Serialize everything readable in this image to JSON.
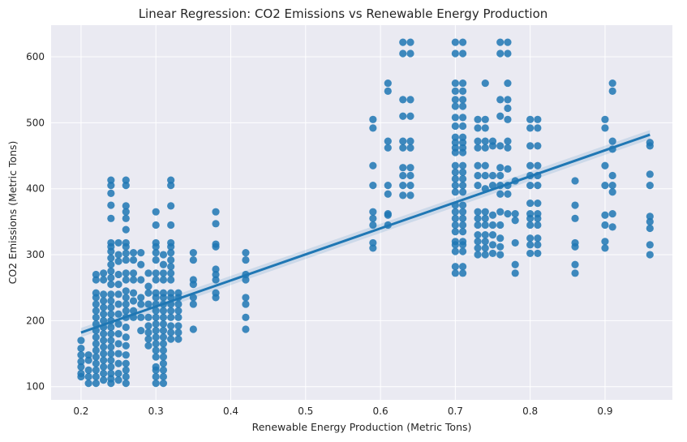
{
  "chart_data": {
    "type": "scatter",
    "title": "Linear Regression: CO2 Emissions vs Renewable Energy Production",
    "xlabel": "Renewable Energy Production (Metric Tons)",
    "ylabel": "CO2 Emissions (Metric Tons)",
    "xlim": [
      0.16,
      0.99
    ],
    "ylim": [
      80,
      648
    ],
    "xticks": [
      0.2,
      0.3,
      0.4,
      0.5,
      0.6,
      0.7,
      0.8,
      0.9
    ],
    "yticks": [
      100,
      200,
      300,
      400,
      500,
      600
    ],
    "grid": true,
    "colors": {
      "points": "#1f77b4",
      "background": "#eaeaf2",
      "grid": "#ffffff"
    },
    "regression_line": {
      "x": [
        0.2,
        0.96
      ],
      "y": [
        182,
        482
      ],
      "ci_halfwidth": 7
    },
    "columns": [
      {
        "x": 0.2,
        "y": [
          115,
          120,
          130,
          138,
          148,
          158,
          170
        ]
      },
      {
        "x": 0.21,
        "y": [
          105,
          115,
          125,
          140,
          148
        ]
      },
      {
        "x": 0.22,
        "y": [
          105,
          115,
          125,
          135,
          145,
          155,
          165,
          175,
          185,
          195,
          205,
          215,
          225,
          235,
          242,
          262,
          270
        ]
      },
      {
        "x": 0.23,
        "y": [
          110,
          120,
          130,
          140,
          150,
          160,
          170,
          180,
          190,
          200,
          210,
          220,
          230,
          240,
          262,
          272
        ]
      },
      {
        "x": 0.24,
        "y": [
          105,
          112,
          120,
          130,
          140,
          150,
          160,
          170,
          180,
          190,
          200,
          210,
          220,
          230,
          240,
          255,
          265,
          275,
          285,
          295,
          305,
          312,
          318,
          355,
          375,
          393,
          405,
          413
        ]
      },
      {
        "x": 0.25,
        "y": [
          110,
          120,
          135,
          150,
          165,
          180,
          195,
          210,
          225,
          240,
          255,
          270,
          290,
          300,
          318
        ]
      },
      {
        "x": 0.26,
        "y": [
          105,
          115,
          125,
          135,
          148,
          162,
          175,
          190,
          205,
          215,
          225,
          235,
          245,
          262,
          272,
          292,
          302,
          312,
          318,
          338,
          355,
          365,
          374,
          405,
          413
        ]
      },
      {
        "x": 0.27,
        "y": [
          205,
          215,
          230,
          242,
          262,
          272,
          292,
          303
        ]
      },
      {
        "x": 0.28,
        "y": [
          185,
          205,
          225,
          235,
          262,
          285,
          303
        ]
      },
      {
        "x": 0.29,
        "y": [
          162,
          172,
          182,
          192,
          205,
          225,
          242,
          252,
          272
        ]
      },
      {
        "x": 0.3,
        "y": [
          105,
          115,
          125,
          130,
          145,
          155,
          165,
          175,
          185,
          195,
          205,
          215,
          225,
          235,
          242,
          262,
          272,
          292,
          303,
          312,
          318,
          345,
          365
        ]
      },
      {
        "x": 0.31,
        "y": [
          105,
          115,
          125,
          135,
          145,
          155,
          165,
          175,
          185,
          195,
          205,
          215,
          225,
          235,
          242,
          262,
          272,
          285,
          300
        ]
      },
      {
        "x": 0.32,
        "y": [
          172,
          182,
          192,
          205,
          215,
          225,
          235,
          242,
          262,
          272,
          282,
          292,
          303,
          312,
          318,
          345,
          374,
          405,
          413
        ]
      },
      {
        "x": 0.33,
        "y": [
          172,
          182,
          192,
          205,
          215,
          225,
          235,
          242
        ]
      },
      {
        "x": 0.35,
        "y": [
          187,
          225,
          235,
          255,
          262,
          292,
          303
        ]
      },
      {
        "x": 0.38,
        "y": [
          235,
          242,
          262,
          270,
          278,
          312,
          316,
          347,
          365
        ]
      },
      {
        "x": 0.42,
        "y": [
          187,
          205,
          225,
          235,
          262,
          270,
          292,
          303
        ]
      },
      {
        "x": 0.59,
        "y": [
          310,
          318,
          345,
          355,
          365,
          405,
          435,
          492,
          505
        ]
      },
      {
        "x": 0.61,
        "y": [
          345,
          360,
          362,
          392,
          405,
          462,
          472,
          548,
          560
        ]
      },
      {
        "x": 0.63,
        "y": [
          390,
          405,
          420,
          432,
          462,
          472,
          510,
          535,
          605,
          622
        ]
      },
      {
        "x": 0.64,
        "y": [
          390,
          405,
          420,
          432,
          462,
          472,
          510,
          535,
          605,
          622
        ]
      },
      {
        "x": 0.7,
        "y": [
          272,
          282,
          305,
          315,
          320,
          335,
          345,
          355,
          365,
          375,
          395,
          405,
          415,
          425,
          435,
          455,
          462,
          470,
          478,
          495,
          508,
          525,
          535,
          548,
          560,
          605,
          622
        ]
      },
      {
        "x": 0.71,
        "y": [
          272,
          282,
          305,
          315,
          320,
          335,
          345,
          355,
          365,
          375,
          395,
          405,
          415,
          425,
          435,
          455,
          462,
          470,
          478,
          495,
          508,
          525,
          535,
          548,
          560,
          605,
          622
        ]
      },
      {
        "x": 0.73,
        "y": [
          300,
          310,
          320,
          330,
          345,
          355,
          365,
          405,
          420,
          435,
          462,
          472,
          492,
          505
        ]
      },
      {
        "x": 0.74,
        "y": [
          300,
          310,
          320,
          330,
          345,
          355,
          365,
          400,
          420,
          435,
          462,
          472,
          492,
          505,
          560
        ]
      },
      {
        "x": 0.75,
        "y": [
          302,
          315,
          330,
          345,
          360,
          405,
          420,
          465,
          472
        ]
      },
      {
        "x": 0.76,
        "y": [
          300,
          312,
          325,
          345,
          365,
          392,
          405,
          420,
          432,
          465,
          510,
          535,
          605,
          622
        ]
      },
      {
        "x": 0.77,
        "y": [
          362,
          392,
          405,
          430,
          462,
          472,
          505,
          522,
          535,
          560,
          605,
          622
        ]
      },
      {
        "x": 0.78,
        "y": [
          272,
          285,
          318,
          352,
          362,
          412
        ]
      },
      {
        "x": 0.8,
        "y": [
          302,
          315,
          325,
          345,
          355,
          362,
          378,
          405,
          420,
          435,
          465,
          492,
          505
        ]
      },
      {
        "x": 0.81,
        "y": [
          302,
          315,
          325,
          345,
          355,
          362,
          378,
          405,
          420,
          435,
          465,
          492,
          505
        ]
      },
      {
        "x": 0.86,
        "y": [
          272,
          285,
          312,
          318,
          355,
          375,
          412
        ]
      },
      {
        "x": 0.9,
        "y": [
          310,
          320,
          345,
          360,
          405,
          435,
          492,
          505
        ]
      },
      {
        "x": 0.91,
        "y": [
          342,
          362,
          395,
          405,
          420,
          460,
          472,
          548,
          560
        ]
      },
      {
        "x": 0.96,
        "y": [
          300,
          315,
          340,
          350,
          358,
          405,
          422,
          465,
          470
        ]
      }
    ]
  }
}
